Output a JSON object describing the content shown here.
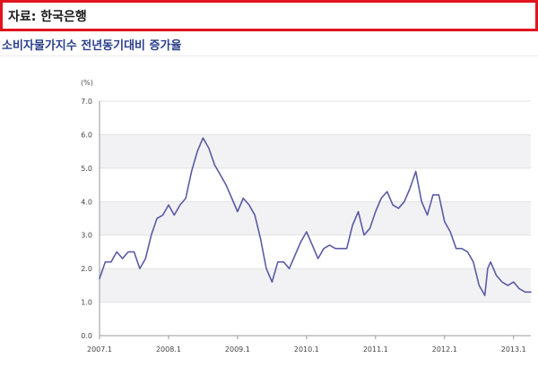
{
  "source": {
    "label": "자료: 한국은행"
  },
  "chart_title": "소비자물가지수 전년동기대비 증가율",
  "chart_data": {
    "type": "line",
    "title": "소비자물가지수 전년동기대비 증가율",
    "unit_label": "(%)",
    "xlabel": "",
    "ylabel": "",
    "ylim": [
      0,
      7
    ],
    "yticks": [
      0.0,
      1.0,
      2.0,
      3.0,
      4.0,
      5.0,
      6.0,
      7.0
    ],
    "ytick_labels": [
      "0.0",
      "1.0",
      "2.0",
      "3.0",
      "4.0",
      "5.0",
      "6.0",
      "7.0"
    ],
    "xlim": [
      2007.0,
      2013.25
    ],
    "xticks": [
      2007.0,
      2008.0,
      2009.0,
      2010.0,
      2011.0,
      2012.0,
      2013.0
    ],
    "xtick_labels": [
      "2007.1",
      "2008.1",
      "2009.1",
      "2010.1",
      "2011.1",
      "2012.1",
      "2013.1"
    ],
    "grid": "alternating horizontal bands",
    "line_color": "#5b5ba6",
    "series": [
      {
        "x": [
          2007.0,
          2007.083,
          2007.167,
          2007.25,
          2007.333,
          2007.417,
          2007.5,
          2007.583,
          2007.667,
          2007.75,
          2007.833,
          2007.917,
          2008.0,
          2008.083,
          2008.167,
          2008.25,
          2008.333,
          2008.417,
          2008.5,
          2008.583,
          2008.667,
          2008.75,
          2008.833,
          2008.917,
          2009.0,
          2009.083,
          2009.167,
          2009.25,
          2009.333,
          2009.417,
          2009.5,
          2009.583,
          2009.667,
          2009.75,
          2009.833,
          2009.917,
          2010.0,
          2010.083,
          2010.167,
          2010.25,
          2010.333,
          2010.417,
          2010.5,
          2010.583,
          2010.667,
          2010.75,
          2010.833,
          2010.917,
          2011.0,
          2011.083,
          2011.167,
          2011.25,
          2011.333,
          2011.417,
          2011.5,
          2011.583,
          2011.667,
          2011.75,
          2011.833,
          2011.917,
          2012.0,
          2012.083,
          2012.167,
          2012.25,
          2012.333,
          2012.417,
          2012.5,
          2012.583,
          2012.625,
          2012.667,
          2012.75,
          2012.833,
          2012.917,
          2013.0,
          2013.083,
          2013.167,
          2013.25
        ],
        "values": [
          1.7,
          2.2,
          2.2,
          2.5,
          2.3,
          2.5,
          2.5,
          2.0,
          2.3,
          3.0,
          3.5,
          3.6,
          3.9,
          3.6,
          3.9,
          4.1,
          4.9,
          5.5,
          5.9,
          5.6,
          5.1,
          4.8,
          4.5,
          4.1,
          3.7,
          4.1,
          3.9,
          3.6,
          2.9,
          2.0,
          1.6,
          2.2,
          2.2,
          2.0,
          2.4,
          2.8,
          3.1,
          2.7,
          2.3,
          2.6,
          2.7,
          2.6,
          2.6,
          2.6,
          3.3,
          3.7,
          3.0,
          3.2,
          3.7,
          4.1,
          4.3,
          3.9,
          3.8,
          4.0,
          4.4,
          4.9,
          4.0,
          3.6,
          4.2,
          4.2,
          3.4,
          3.1,
          2.6,
          2.6,
          2.5,
          2.2,
          1.5,
          1.2,
          2.0,
          2.2,
          1.8,
          1.6,
          1.5,
          1.6,
          1.4,
          1.3,
          1.3
        ]
      }
    ]
  }
}
